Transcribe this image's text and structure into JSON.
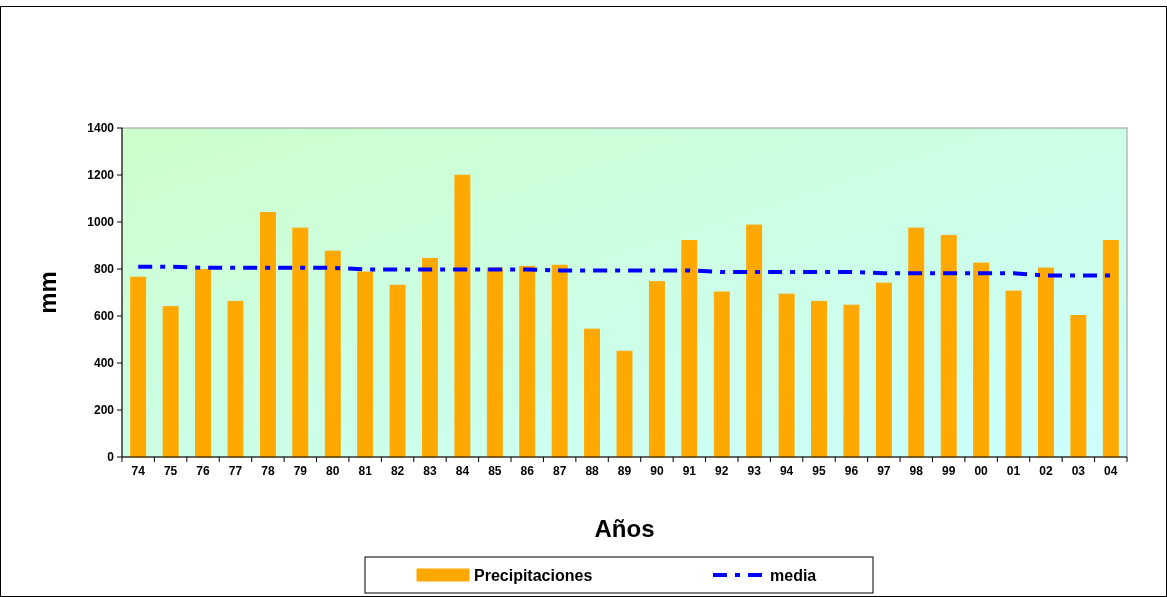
{
  "chart_data": {
    "type": "bar",
    "xlabel": "Años",
    "ylabel": "mm",
    "categories": [
      "74",
      "75",
      "76",
      "77",
      "78",
      "79",
      "80",
      "81",
      "82",
      "83",
      "84",
      "85",
      "86",
      "87",
      "88",
      "89",
      "90",
      "91",
      "92",
      "93",
      "94",
      "95",
      "96",
      "97",
      "98",
      "99",
      "00",
      "01",
      "02",
      "03",
      "04"
    ],
    "series": [
      {
        "name": "Precipitaciones",
        "color": "#ffa800",
        "values": [
          765,
          640,
          798,
          662,
          1040,
          974,
          876,
          787,
          731,
          845,
          1199,
          804,
          811,
          816,
          544,
          450,
          746,
          921,
          702,
          987,
          693,
          662,
          646,
          740,
          974,
          943,
          825,
          706,
          804,
          602,
          921
        ]
      },
      {
        "name": "media",
        "type": "line",
        "color": "#0000ff",
        "line_style": "dashed",
        "marker": "none",
        "values": [
          810,
          810,
          805,
          805,
          805,
          805,
          805,
          798,
          798,
          798,
          798,
          798,
          798,
          794,
          794,
          794,
          794,
          794,
          787,
          787,
          787,
          787,
          787,
          782,
          782,
          782,
          782,
          782,
          772,
          772,
          772
        ]
      }
    ],
    "ylim": [
      0,
      1400
    ],
    "yticks": [
      0,
      200,
      400,
      600,
      800,
      1000,
      1200,
      1400
    ],
    "grid": false,
    "legend": "bottom"
  }
}
